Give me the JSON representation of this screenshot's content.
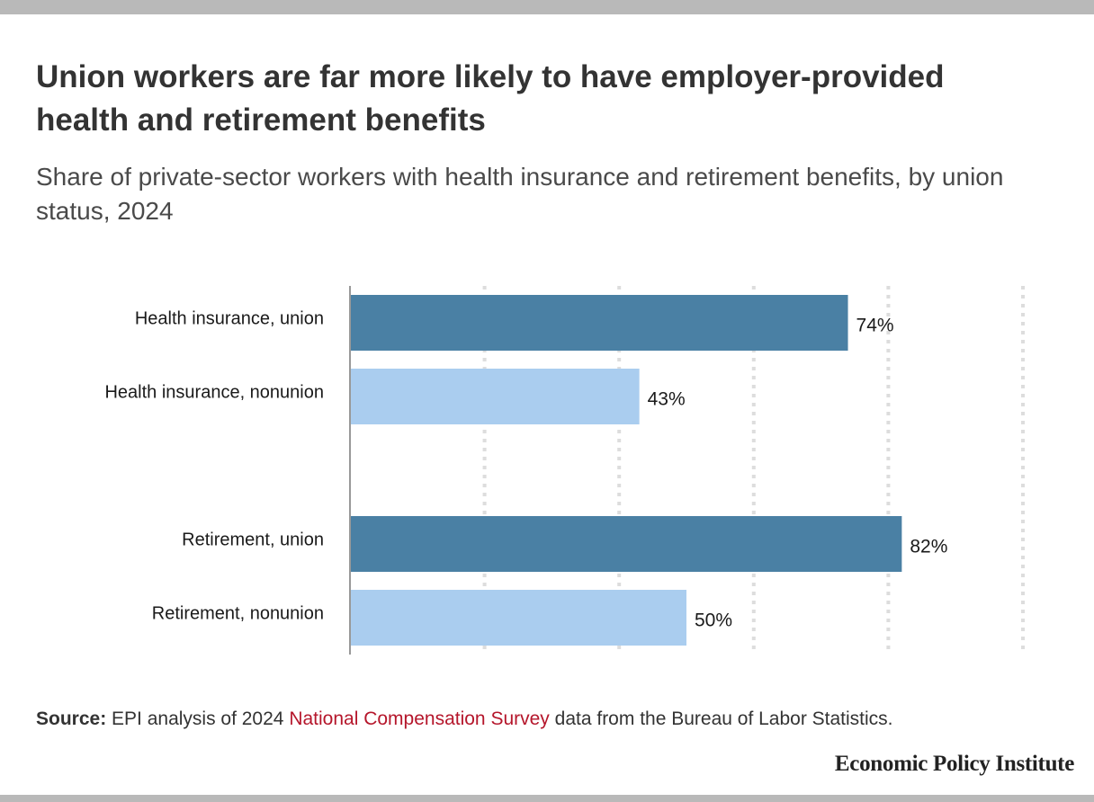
{
  "title": "Union workers are far more likely to have employer-provided health and retirement benefits",
  "subtitle": "Share of private-sector workers with health insurance and retirement benefits, by union status, 2024",
  "source": {
    "prefix": "Source:",
    "text_before": " EPI analysis of 2024 ",
    "link_text": "National Compensation Survey",
    "text_after": " data from the Bureau of Labor Statistics."
  },
  "logo": "Economic Policy Institute",
  "colors": {
    "union": "#4a80a4",
    "nonunion": "#aacdef",
    "link": "#b5162b",
    "grid": "#dddddd"
  },
  "chart_data": {
    "type": "bar",
    "orientation": "horizontal",
    "categories": [
      "Health insurance, union",
      "Health insurance, nonunion",
      "Retirement, union",
      "Retirement, nonunion"
    ],
    "values": [
      74,
      43,
      82,
      50
    ],
    "value_labels": [
      "74%",
      "43%",
      "82%",
      "50%"
    ],
    "groups": [
      [
        0,
        1
      ],
      [
        2,
        3
      ]
    ],
    "xlim": [
      0,
      100
    ],
    "x_gridlines": [
      20,
      40,
      60,
      80,
      100
    ],
    "grid": true,
    "unit": "%"
  }
}
